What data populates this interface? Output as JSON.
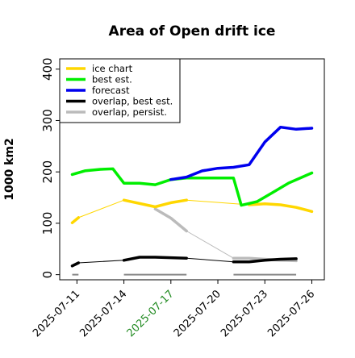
{
  "chart_data": {
    "type": "line",
    "title": "Area of Open drift ice",
    "ylabel": "1000 km2",
    "xlabel": "",
    "ylim": [
      -10,
      420
    ],
    "yticks": [
      0,
      100,
      200,
      300,
      400
    ],
    "xticks": [
      {
        "label": "2025-07-11",
        "x": 11,
        "color": "#000000"
      },
      {
        "label": "2025-07-14",
        "x": 14,
        "color": "#000000"
      },
      {
        "label": "2025-07-17",
        "x": 17,
        "color": "#228B22"
      },
      {
        "label": "2025-07-20",
        "x": 20,
        "color": "#000000"
      },
      {
        "label": "2025-07-23",
        "x": 23,
        "color": "#000000"
      },
      {
        "label": "2025-07-26",
        "x": 26,
        "color": "#000000"
      }
    ],
    "legend_position": "top-left",
    "series": [
      {
        "name": "ice chart",
        "color": "#FFD700",
        "segments": [
          {
            "thick": true,
            "points": [
              [
                10.7,
                101
              ],
              [
                11.1,
                111
              ]
            ]
          },
          {
            "thick": false,
            "points": [
              [
                11.1,
                111
              ],
              [
                14.0,
                145
              ]
            ]
          },
          {
            "thick": true,
            "points": [
              [
                14.0,
                145
              ],
              [
                16.0,
                132
              ],
              [
                17.0,
                140
              ],
              [
                18.0,
                145
              ]
            ]
          },
          {
            "thick": false,
            "points": [
              [
                18.0,
                145
              ],
              [
                22.0,
                136
              ]
            ]
          },
          {
            "thick": true,
            "points": [
              [
                22.0,
                136
              ],
              [
                23.0,
                138
              ],
              [
                24.0,
                136
              ],
              [
                25.0,
                131
              ],
              [
                26.0,
                123
              ]
            ]
          }
        ]
      },
      {
        "name": "best est.",
        "color": "#00EE00",
        "segments": [
          {
            "thick": true,
            "points": [
              [
                10.7,
                195
              ],
              [
                11.5,
                202
              ],
              [
                12.5,
                205
              ],
              [
                13.3,
                206
              ],
              [
                14.0,
                178
              ],
              [
                15.0,
                178
              ],
              [
                16.0,
                175
              ],
              [
                17.0,
                185
              ],
              [
                18.0,
                188
              ],
              [
                19.0,
                188
              ],
              [
                20.0,
                188
              ],
              [
                21.0,
                188
              ],
              [
                21.5,
                135
              ],
              [
                22.5,
                142
              ],
              [
                23.5,
                160
              ],
              [
                24.5,
                178
              ],
              [
                26.0,
                198
              ]
            ]
          }
        ]
      },
      {
        "name": "forecast",
        "color": "#0000EE",
        "segments": [
          {
            "thick": true,
            "points": [
              [
                17.0,
                185
              ],
              [
                18.0,
                190
              ],
              [
                19.0,
                202
              ],
              [
                20.0,
                207
              ],
              [
                21.0,
                209
              ],
              [
                22.0,
                214
              ],
              [
                23.0,
                258
              ],
              [
                24.0,
                287
              ],
              [
                25.0,
                283
              ],
              [
                26.0,
                285
              ]
            ]
          }
        ]
      },
      {
        "name": "overlap, best est.",
        "color": "#000000",
        "segments": [
          {
            "thick": true,
            "points": [
              [
                10.7,
                17
              ],
              [
                11.1,
                23
              ]
            ]
          },
          {
            "thick": false,
            "points": [
              [
                11.1,
                23
              ],
              [
                14.0,
                28
              ]
            ]
          },
          {
            "thick": true,
            "points": [
              [
                14.0,
                28
              ],
              [
                15.0,
                34
              ],
              [
                16.0,
                34
              ],
              [
                17.0,
                33
              ],
              [
                18.0,
                32
              ]
            ]
          },
          {
            "thick": false,
            "points": [
              [
                18.0,
                32
              ],
              [
                21.0,
                25
              ]
            ]
          },
          {
            "thick": true,
            "points": [
              [
                21.0,
                25
              ],
              [
                22.0,
                25
              ],
              [
                23.0,
                28
              ],
              [
                24.0,
                30
              ],
              [
                25.0,
                31
              ]
            ]
          }
        ]
      },
      {
        "name": "overlap, persist.",
        "color": "#BBBBBB",
        "segments": [
          {
            "thick": true,
            "points": [
              [
                16.0,
                128
              ],
              [
                17.0,
                110
              ],
              [
                18.0,
                85
              ]
            ]
          },
          {
            "thick": false,
            "points": [
              [
                18.0,
                85
              ],
              [
                21.0,
                32
              ]
            ]
          },
          {
            "thick": true,
            "points": [
              [
                21.0,
                32
              ],
              [
                22.0,
                32
              ],
              [
                23.0,
                30
              ],
              [
                24.0,
                28
              ],
              [
                25.0,
                27
              ]
            ]
          }
        ]
      }
    ],
    "baseline_segments": [
      {
        "x": [
          10.7,
          11.1
        ],
        "y": 0
      },
      {
        "x": [
          14.0,
          18.0
        ],
        "y": 0
      },
      {
        "x": [
          21.0,
          25.0
        ],
        "y": 0
      }
    ],
    "baseline_color": "#888888"
  }
}
